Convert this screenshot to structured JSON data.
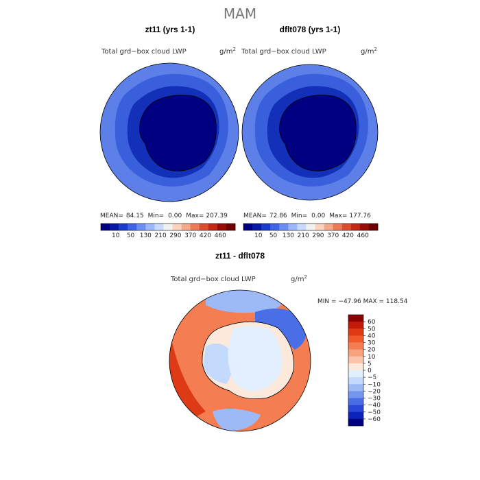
{
  "title": "MAM",
  "chart_data": [
    {
      "type": "heatmap",
      "panel_title": "zt11 (yrs 1-1)",
      "variable": "Total grd−box cloud LWP",
      "units_base": "g/m",
      "units_exp": "2",
      "stats": {
        "mean_label": "MEAN=",
        "mean": "84.15",
        "min_label": "Min=",
        "min": "0.00",
        "max_label": "Max=",
        "max": "207.39"
      },
      "colorbar_ticks": [
        "10",
        "50",
        "130",
        "210",
        "290",
        "370",
        "420",
        "460"
      ],
      "colorbar_colors": [
        "#000080",
        "#0518a8",
        "#1a3ccc",
        "#3c64e6",
        "#6a8ef5",
        "#9ab8fb",
        "#c8daff",
        "#f2f2f2",
        "#fbd2bd",
        "#f6a98a",
        "#ee7b58",
        "#dc4d2e",
        "#c42814",
        "#9a0b06",
        "#700000"
      ]
    },
    {
      "type": "heatmap",
      "panel_title": "dflt078 (yrs 1-1)",
      "variable": "Total grd−box cloud LWP",
      "units_base": "g/m",
      "units_exp": "2",
      "stats": {
        "mean_label": "MEAN=",
        "mean": "72.86",
        "min_label": "Min=",
        "min": "0.00",
        "max_label": "Max=",
        "max": "177.76"
      },
      "colorbar_ticks": [
        "10",
        "50",
        "130",
        "210",
        "290",
        "370",
        "420",
        "460"
      ],
      "colorbar_colors": [
        "#000080",
        "#0518a8",
        "#1a3ccc",
        "#3c64e6",
        "#6a8ef5",
        "#9ab8fb",
        "#c8daff",
        "#f2f2f2",
        "#fbd2bd",
        "#f6a98a",
        "#ee7b58",
        "#dc4d2e",
        "#c42814",
        "#9a0b06",
        "#700000"
      ]
    },
    {
      "type": "heatmap",
      "panel_title": "zt11 - dflt078",
      "variable": "Total grd−box cloud LWP",
      "units_base": "g/m",
      "units_exp": "2",
      "stats_text": "MIN = −47.96  MAX = 118.54",
      "colorbar_ticks": [
        "60",
        "50",
        "40",
        "30",
        "20",
        "10",
        "5",
        "0",
        "−5",
        "−10",
        "−20",
        "−30",
        "−40",
        "−50",
        "−60"
      ],
      "colorbar_colors": [
        "#8b0000",
        "#c31a0a",
        "#de3a16",
        "#ee5a2c",
        "#f47e52",
        "#f8a27c",
        "#fbc4a8",
        "#fde8dc",
        "#e2efff",
        "#c4dafc",
        "#9dbaf7",
        "#7496ef",
        "#4a6ee6",
        "#2a48d8",
        "#0c22b8",
        "#000080"
      ]
    }
  ]
}
